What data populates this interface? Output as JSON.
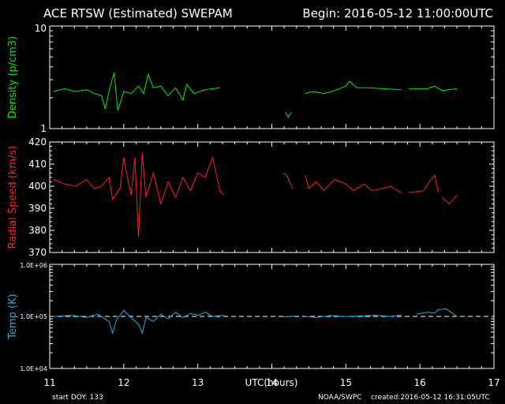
{
  "title_left": "ACE RTSW (Estimated) SWEPAM",
  "title_right": "Begin: 2016-05-12 11:00:00UTC",
  "footer": {
    "start_doy": "start DOY: 133",
    "source": "NOAA/SWPC",
    "created": "created:2016-05-12 16:31:05UTC"
  },
  "chart_data": [
    {
      "type": "line",
      "title": "",
      "ylabel": "Density (p/cm3)",
      "xlabel": "UTC(hours)",
      "xlim": [
        11,
        17
      ],
      "ylim": [
        1,
        10
      ],
      "yscale": "log",
      "y_tick_labels": [
        "10",
        "1"
      ],
      "color": "#00ee00",
      "series": [
        {
          "segments": [
            [
              [
                11.05,
                2.3
              ],
              [
                11.2,
                2.45
              ],
              [
                11.35,
                2.3
              ],
              [
                11.5,
                2.4
              ],
              [
                11.6,
                2.2
              ],
              [
                11.7,
                2.1
              ],
              [
                11.75,
                1.55
              ],
              [
                11.8,
                2.3
              ],
              [
                11.87,
                3.5
              ],
              [
                11.92,
                1.5
              ],
              [
                12.0,
                2.3
              ],
              [
                12.1,
                2.2
              ],
              [
                12.2,
                2.6
              ],
              [
                12.27,
                2.2
              ],
              [
                12.33,
                3.4
              ],
              [
                12.4,
                2.5
              ],
              [
                12.5,
                2.6
              ],
              [
                12.6,
                2.1
              ],
              [
                12.7,
                2.5
              ],
              [
                12.8,
                1.9
              ],
              [
                12.85,
                2.7
              ],
              [
                12.95,
                2.2
              ],
              [
                13.1,
                2.4
              ],
              [
                13.3,
                2.5
              ]
            ],
            [
              [
                14.18,
                1.45
              ],
              [
                14.22,
                1.3
              ],
              [
                14.27,
                1.45
              ]
            ],
            [
              [
                14.45,
                2.2
              ],
              [
                14.55,
                2.3
              ],
              [
                14.7,
                2.2
              ],
              [
                14.85,
                2.35
              ],
              [
                15.0,
                2.6
              ],
              [
                15.05,
                2.9
              ],
              [
                15.15,
                2.5
              ],
              [
                15.3,
                2.5
              ],
              [
                15.5,
                2.45
              ],
              [
                15.75,
                2.4
              ]
            ],
            [
              [
                15.85,
                2.45
              ],
              [
                16.1,
                2.45
              ],
              [
                16.2,
                2.6
              ],
              [
                16.3,
                2.35
              ],
              [
                16.5,
                2.45
              ]
            ]
          ]
        }
      ]
    },
    {
      "type": "line",
      "title": "",
      "ylabel": "Radial Speed (km/s)",
      "xlabel": "UTC(hours)",
      "xlim": [
        11,
        17
      ],
      "ylim": [
        370,
        420
      ],
      "y_ticks": [
        370,
        380,
        390,
        400,
        410,
        420
      ],
      "color": "#ff2020",
      "series": [
        {
          "segments": [
            [
              [
                11.05,
                403
              ],
              [
                11.2,
                401
              ],
              [
                11.35,
                400
              ],
              [
                11.5,
                403
              ],
              [
                11.6,
                399
              ],
              [
                11.7,
                400
              ],
              [
                11.8,
                404
              ],
              [
                11.85,
                394
              ],
              [
                11.95,
                399
              ],
              [
                12.0,
                413
              ],
              [
                12.05,
                404
              ],
              [
                12.1,
                396
              ],
              [
                12.15,
                413
              ],
              [
                12.2,
                377
              ],
              [
                12.25,
                415
              ],
              [
                12.3,
                395
              ],
              [
                12.4,
                406
              ],
              [
                12.5,
                392
              ],
              [
                12.6,
                402
              ],
              [
                12.7,
                395
              ],
              [
                12.8,
                404
              ],
              [
                12.9,
                398
              ],
              [
                13.0,
                406
              ],
              [
                13.1,
                404
              ],
              [
                13.2,
                413
              ],
              [
                13.3,
                398
              ],
              [
                13.35,
                396
              ]
            ],
            [
              [
                14.15,
                406
              ],
              [
                14.2,
                405
              ],
              [
                14.28,
                399
              ]
            ],
            [
              [
                14.45,
                405
              ],
              [
                14.5,
                399
              ],
              [
                14.6,
                402
              ],
              [
                14.7,
                398
              ],
              [
                14.85,
                403
              ],
              [
                15.0,
                401
              ],
              [
                15.1,
                398
              ],
              [
                15.25,
                401
              ],
              [
                15.35,
                398
              ],
              [
                15.5,
                399
              ],
              [
                15.6,
                400
              ],
              [
                15.75,
                397
              ]
            ],
            [
              [
                15.85,
                397
              ],
              [
                16.05,
                398
              ],
              [
                16.15,
                403
              ],
              [
                16.2,
                405
              ],
              [
                16.25,
                397
              ]
            ],
            [
              [
                16.3,
                395
              ],
              [
                16.4,
                392
              ],
              [
                16.5,
                396
              ]
            ]
          ]
        }
      ]
    },
    {
      "type": "line",
      "title": "",
      "ylabel": "Temp (K)",
      "xlabel": "UTC(hours)",
      "xlim": [
        11,
        17
      ],
      "yscale": "log",
      "ylim": [
        10000,
        1000000
      ],
      "y_tick_labels": [
        "1.0E+06",
        "1.0E+05",
        "1.0E+04"
      ],
      "reference_line": 100000,
      "color": "#20b0e0",
      "x_ticks": [
        11,
        12,
        13,
        14,
        15,
        16,
        17
      ],
      "series": [
        {
          "segments": [
            [
              [
                11.05,
                100000
              ],
              [
                11.3,
                105000
              ],
              [
                11.5,
                96000
              ],
              [
                11.65,
                110000
              ],
              [
                11.8,
                80000
              ],
              [
                11.85,
                48000
              ],
              [
                11.9,
                85000
              ],
              [
                12.0,
                130000
              ],
              [
                12.1,
                95000
              ],
              [
                12.2,
                70000
              ],
              [
                12.25,
                48000
              ],
              [
                12.3,
                95000
              ],
              [
                12.4,
                80000
              ],
              [
                12.5,
                110000
              ],
              [
                12.6,
                90000
              ],
              [
                12.7,
                120000
              ],
              [
                12.8,
                95000
              ],
              [
                12.9,
                115000
              ],
              [
                13.0,
                105000
              ],
              [
                13.1,
                120000
              ],
              [
                13.2,
                100000
              ],
              [
                13.35,
                105000
              ]
            ],
            [
              [
                14.15,
                98000
              ],
              [
                14.3,
                102000
              ]
            ],
            [
              [
                14.45,
                100000
              ],
              [
                14.6,
                96000
              ],
              [
                14.8,
                104000
              ],
              [
                15.0,
                100000
              ],
              [
                15.2,
                102000
              ],
              [
                15.4,
                105000
              ],
              [
                15.6,
                100000
              ],
              [
                15.75,
                106000
              ]
            ],
            [
              [
                15.95,
                110000
              ],
              [
                16.1,
                120000
              ],
              [
                16.2,
                115000
              ],
              [
                16.25,
                135000
              ],
              [
                16.35,
                140000
              ],
              [
                16.5,
                100000
              ]
            ]
          ]
        }
      ]
    }
  ]
}
